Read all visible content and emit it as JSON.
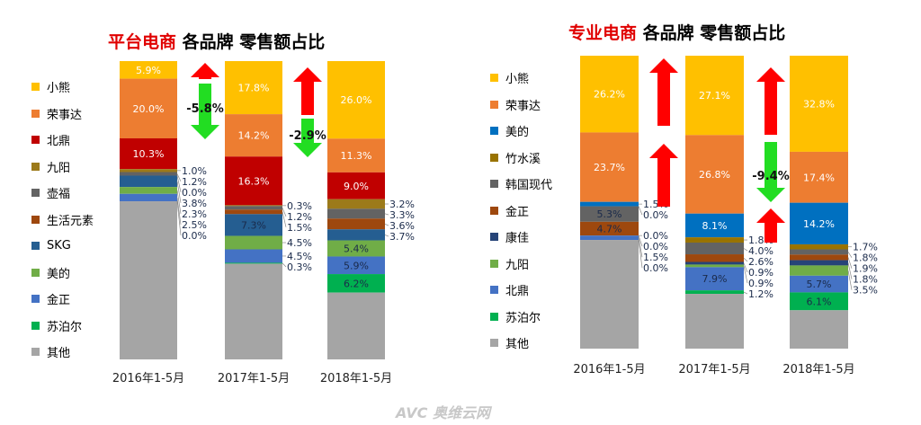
{
  "watermark": "AVC 奥维云网",
  "chart_data": [
    {
      "type": "bar",
      "stacked": true,
      "title_highlight": "平台电商",
      "title_rest": "各品牌 零售额占比",
      "categories": [
        "2016年1-5月",
        "2017年1-5月",
        "2018年1-5月"
      ],
      "series": [
        {
          "name": "小熊",
          "color": "#FFC000",
          "values": [
            5.9,
            17.8,
            26.0
          ]
        },
        {
          "name": "荣事达",
          "color": "#ED7D31",
          "values": [
            20.0,
            14.2,
            11.3
          ]
        },
        {
          "name": "北鼎",
          "color": "#C00000",
          "values": [
            10.3,
            16.3,
            9.0
          ]
        },
        {
          "name": "九阳",
          "color": "#9C7A1A",
          "values": [
            1.0,
            0.3,
            3.2
          ]
        },
        {
          "name": "壶福",
          "color": "#636363",
          "values": [
            1.2,
            1.2,
            3.3
          ]
        },
        {
          "name": "生活元素",
          "color": "#9E480E",
          "values": [
            0.0,
            1.5,
            3.6
          ]
        },
        {
          "name": "SKG",
          "color": "#255E91",
          "values": [
            3.8,
            7.3,
            3.7
          ]
        },
        {
          "name": "美的",
          "color": "#70AD47",
          "values": [
            2.3,
            4.5,
            5.4
          ]
        },
        {
          "name": "金正",
          "color": "#4472C4",
          "values": [
            2.5,
            4.5,
            5.9
          ]
        },
        {
          "name": "苏泊尔",
          "color": "#00B050",
          "values": [
            0.0,
            0.3,
            6.2
          ]
        },
        {
          "name": "其他",
          "color": "#A5A5A5",
          "values": [
            53.0,
            32.1,
            22.4
          ]
        }
      ],
      "annotations": [
        "-5.8%",
        "-2.9%"
      ],
      "ylim": [
        0,
        100
      ]
    },
    {
      "type": "bar",
      "stacked": true,
      "title_highlight": "专业电商",
      "title_rest": "各品牌 零售额占比",
      "categories": [
        "2016年1-5月",
        "2017年1-5月",
        "2018年1-5月"
      ],
      "series": [
        {
          "name": "小熊",
          "color": "#FFC000",
          "values": [
            26.2,
            27.1,
            32.8
          ]
        },
        {
          "name": "荣事达",
          "color": "#ED7D31",
          "values": [
            23.7,
            26.8,
            17.4
          ]
        },
        {
          "name": "美的",
          "color": "#0070C0",
          "values": [
            1.5,
            8.1,
            14.2
          ]
        },
        {
          "name": "竹水溪",
          "color": "#997300",
          "values": [
            0.0,
            1.8,
            1.7
          ]
        },
        {
          "name": "韩国现代",
          "color": "#636363",
          "values": [
            5.3,
            4.0,
            1.8
          ]
        },
        {
          "name": "金正",
          "color": "#9E480E",
          "values": [
            4.7,
            2.6,
            1.9
          ]
        },
        {
          "name": "康佳",
          "color": "#264478",
          "values": [
            0.0,
            0.9,
            1.8
          ]
        },
        {
          "name": "九阳",
          "color": "#70AD47",
          "values": [
            0.0,
            0.9,
            3.5
          ]
        },
        {
          "name": "北鼎",
          "color": "#4472C4",
          "values": [
            1.5,
            7.9,
            5.7
          ]
        },
        {
          "name": "苏泊尔",
          "color": "#00B050",
          "values": [
            0.0,
            1.2,
            6.1
          ]
        },
        {
          "name": "其他",
          "color": "#A5A5A5",
          "values": [
            37.1,
            18.7,
            13.1
          ]
        }
      ],
      "annotations": [
        "-9.4%"
      ],
      "ylim": [
        0,
        100
      ]
    }
  ]
}
